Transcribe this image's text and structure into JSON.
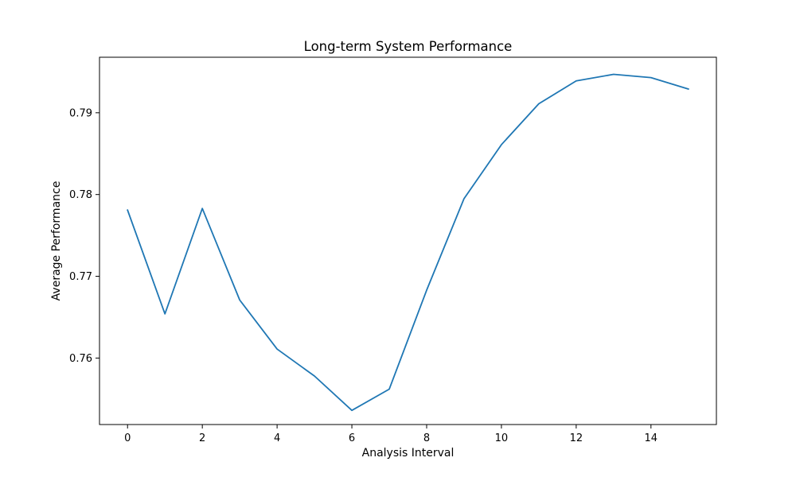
{
  "chart_data": {
    "type": "line",
    "title": "Long-term System Performance",
    "xlabel": "Analysis Interval",
    "ylabel": "Average Performance",
    "x": [
      0,
      1,
      2,
      3,
      4,
      5,
      6,
      7,
      8,
      9,
      10,
      11,
      12,
      13,
      14,
      15
    ],
    "series": [
      {
        "values": [
          0.7781,
          0.7654,
          0.7783,
          0.7671,
          0.7611,
          0.7578,
          0.7536,
          0.7562,
          0.7683,
          0.7795,
          0.7861,
          0.7911,
          0.7939,
          0.7947,
          0.7943,
          0.7929
        ],
        "color": "#1f77b4"
      }
    ],
    "xlim": [
      -0.75,
      15.75
    ],
    "ylim": [
      0.75187,
      0.79679
    ],
    "xticks": [
      0,
      2,
      4,
      6,
      8,
      10,
      12,
      14
    ],
    "xtick_labels": [
      "0",
      "2",
      "4",
      "6",
      "8",
      "10",
      "12",
      "14"
    ],
    "yticks": [
      0.76,
      0.77,
      0.78,
      0.79
    ],
    "ytick_labels": [
      "0.76",
      "0.77",
      "0.78",
      "0.79"
    ],
    "grid": false,
    "legend": "none"
  }
}
